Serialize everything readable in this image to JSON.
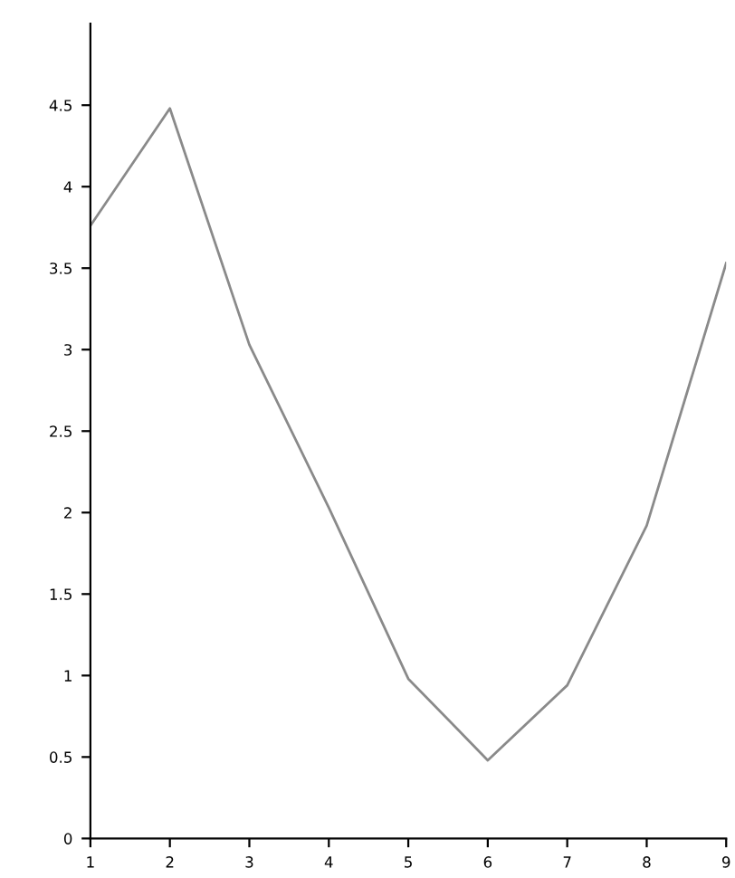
{
  "chart_data": {
    "type": "line",
    "x": [
      1,
      2,
      3,
      4,
      5,
      6,
      7,
      8,
      9
    ],
    "series": [
      {
        "color": "#8a8a8a",
        "values": [
          3.76,
          4.48,
          3.03,
          2.03,
          0.98,
          0.48,
          0.94,
          1.92,
          3.53
        ]
      }
    ],
    "xlim": [
      1,
      9
    ],
    "xticks": [
      1,
      2,
      3,
      4,
      5,
      6,
      7,
      8,
      9
    ],
    "ylim": [
      0,
      5
    ],
    "yticks": [
      0,
      0.5,
      1,
      1.5,
      2,
      2.5,
      3,
      3.5,
      4,
      4.5
    ],
    "grid": false,
    "marker": "none",
    "line_style": "solid"
  }
}
